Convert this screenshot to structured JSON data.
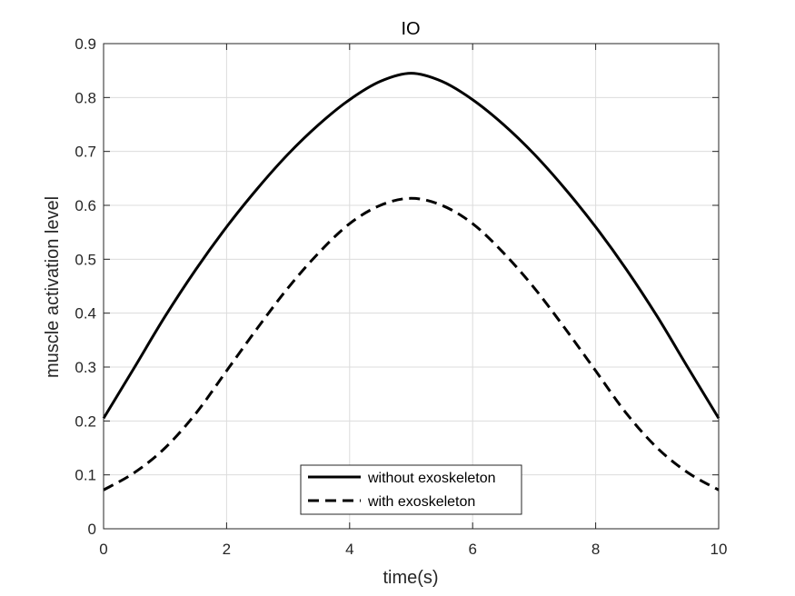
{
  "chart_data": {
    "type": "line",
    "title": "IO",
    "xlabel": "time(s)",
    "ylabel": "muscle activation level",
    "xlim": [
      0,
      10
    ],
    "ylim": [
      0,
      0.9
    ],
    "xticks": [
      0,
      2,
      4,
      6,
      8,
      10
    ],
    "yticks": [
      0,
      0.1,
      0.2,
      0.3,
      0.4,
      0.5,
      0.6,
      0.7,
      0.8,
      0.9
    ],
    "grid": true,
    "legend_position": "bottom-center",
    "series": [
      {
        "name": "without exoskeleton",
        "style": "solid",
        "color": "#000000",
        "x": [
          0,
          0.5,
          1,
          1.5,
          2,
          2.5,
          3,
          3.5,
          4,
          4.5,
          5,
          5.5,
          6,
          6.5,
          7,
          7.5,
          8,
          8.5,
          9,
          9.5,
          10
        ],
        "y": [
          0.205,
          0.299,
          0.394,
          0.481,
          0.56,
          0.631,
          0.695,
          0.75,
          0.796,
          0.83,
          0.845,
          0.83,
          0.796,
          0.75,
          0.695,
          0.631,
          0.56,
          0.481,
          0.394,
          0.299,
          0.205
        ]
      },
      {
        "name": "with exoskeleton",
        "style": "dashed",
        "color": "#000000",
        "x": [
          0,
          0.5,
          1,
          1.5,
          2,
          2.5,
          3,
          3.5,
          4,
          4.5,
          5,
          5.5,
          6,
          6.5,
          7,
          7.5,
          8,
          8.5,
          9,
          9.5,
          10
        ],
        "y": [
          0.072,
          0.104,
          0.15,
          0.214,
          0.293,
          0.372,
          0.447,
          0.512,
          0.566,
          0.6,
          0.613,
          0.6,
          0.566,
          0.512,
          0.447,
          0.372,
          0.293,
          0.214,
          0.15,
          0.104,
          0.072
        ]
      }
    ]
  }
}
